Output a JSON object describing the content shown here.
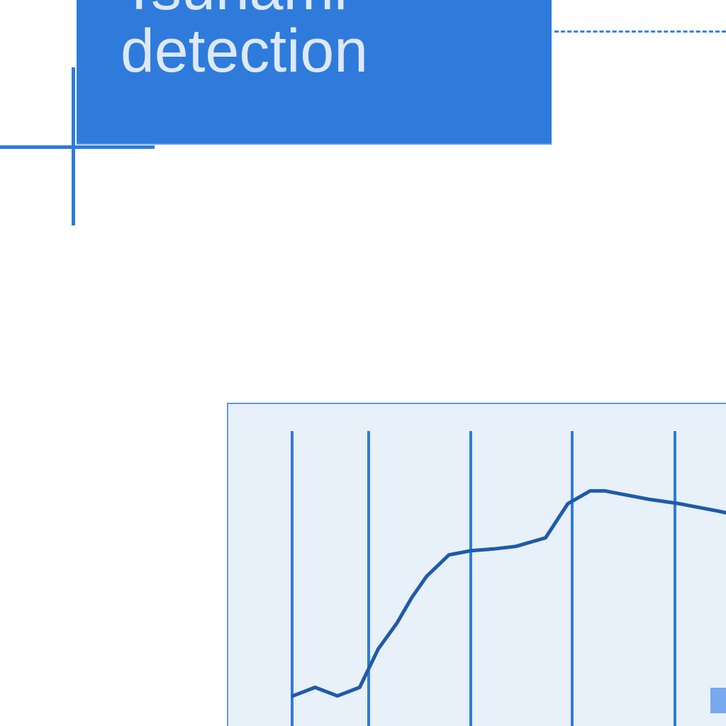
{
  "title": {
    "line1": "Tsunami",
    "line2": "detection"
  },
  "colors": {
    "accent": "#2f7bdc",
    "panel_bg": "#e8f0fa",
    "trace": "#1f5aa8",
    "swatch": "#78a8ef"
  },
  "chart_data": {
    "type": "line",
    "title": "",
    "xlabel": "",
    "ylabel": "",
    "grid": true,
    "vertical_lines": [
      1,
      2,
      3,
      4,
      5
    ],
    "series": [
      {
        "x": [
          0.2,
          0.5,
          0.8,
          1.1,
          1.35,
          1.6,
          1.8,
          2.0,
          2.3,
          2.6,
          2.9,
          3.2,
          3.6,
          3.9,
          4.2,
          4.4,
          4.7,
          5.0,
          5.4,
          5.7,
          6.0,
          6.2
        ],
        "values": [
          0.9,
          1.0,
          0.9,
          1.0,
          1.45,
          1.75,
          2.05,
          2.3,
          2.55,
          2.6,
          2.62,
          2.65,
          2.75,
          3.15,
          3.3,
          3.3,
          3.25,
          3.2,
          3.15,
          3.1,
          3.05,
          3.0
        ]
      }
    ],
    "xlim": [
      0,
      6.2
    ],
    "ylim": [
      0,
      4
    ]
  }
}
